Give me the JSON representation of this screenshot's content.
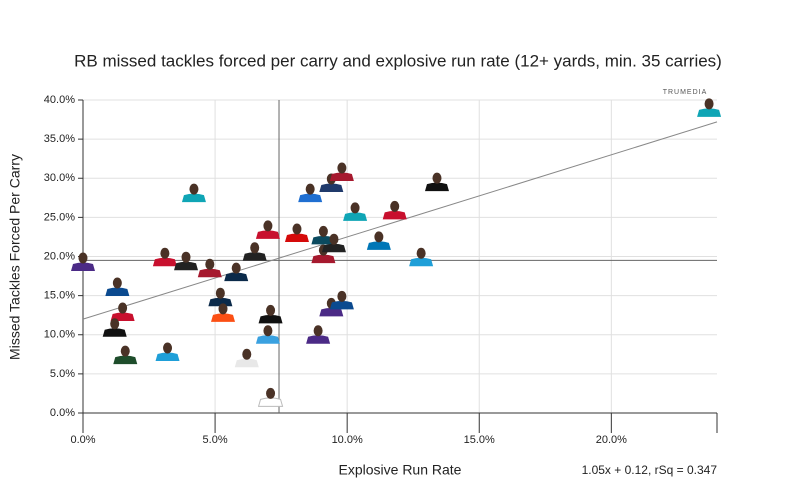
{
  "chart_data": {
    "type": "scatter",
    "title": "RB missed tackles forced per carry and explosive run rate (12+ yards, min. 35 carries)",
    "x_label": "Explosive Run Rate",
    "y_label": "Missed Tackles Forced Per Carry",
    "annotation": "1.05x + 0.12, rSq = 0.347",
    "logo": "TRUMEDIA",
    "xlim": [
      0,
      24
    ],
    "ylim": [
      0,
      40
    ],
    "xticks": [
      {
        "value": 0,
        "label": "0.0%"
      },
      {
        "value": 5,
        "label": "5.0%"
      },
      {
        "value": 10,
        "label": "10.0%"
      },
      {
        "value": 15,
        "label": "15.0%"
      },
      {
        "value": 20,
        "label": "20.0%"
      }
    ],
    "yticks": [
      {
        "value": 0,
        "label": "0.0%"
      },
      {
        "value": 5,
        "label": "5.0%"
      },
      {
        "value": 10,
        "label": "10.0%"
      },
      {
        "value": 15,
        "label": "15.0%"
      },
      {
        "value": 20,
        "label": "20.0%"
      },
      {
        "value": 25,
        "label": "25.0%"
      },
      {
        "value": 30,
        "label": "30.0%"
      },
      {
        "value": 35,
        "label": "35.0%"
      },
      {
        "value": 40,
        "label": "40.0%"
      }
    ],
    "grid": true,
    "x_mean": 7.42,
    "y_mean": 19.5,
    "trendline": {
      "slope": 1.05,
      "intercept": 12
    },
    "x": [
      23.7,
      0.0,
      1.3,
      1.5,
      1.2,
      1.6,
      3.2,
      4.2,
      3.1,
      3.9,
      4.8,
      5.2,
      5.3,
      5.8,
      6.2,
      6.5,
      7.0,
      7.1,
      7.0,
      7.1,
      8.1,
      8.6,
      9.1,
      9.1,
      9.5,
      9.4,
      9.8,
      10.3,
      8.9,
      9.4,
      9.8,
      11.2,
      11.8,
      12.8,
      13.4
    ],
    "y": [
      39.0,
      19.3,
      16.1,
      12.9,
      10.9,
      7.4,
      7.8,
      28.1,
      19.9,
      19.4,
      18.5,
      14.8,
      12.8,
      18.0,
      7.0,
      20.6,
      23.4,
      12.6,
      10.0,
      2.0,
      23.0,
      28.1,
      22.7,
      20.3,
      21.7,
      29.4,
      30.8,
      25.7,
      10.0,
      13.5,
      14.4,
      22.0,
      25.9,
      19.9,
      29.5
    ],
    "colors": [
      "#0fa5b5",
      "#4b2a86",
      "#0b4a8f",
      "#c8102e",
      "#111111",
      "#1e4d2b",
      "#1f9fd8",
      "#0fa5b5",
      "#c8102e",
      "#222222",
      "#a6192e",
      "#0b2a4a",
      "#fb4f14",
      "#0b2a4a",
      "#e8e8e8",
      "#222222",
      "#c8102e",
      "#111111",
      "#3aa1e0",
      "#ffffff",
      "#d50a0a",
      "#1f6fd1",
      "#0b4a5f",
      "#a6192e",
      "#222222",
      "#203a6b",
      "#a6192e",
      "#0fa5b5",
      "#4b2a86",
      "#4b2a86",
      "#0b4a8f",
      "#0076b6",
      "#c8102e",
      "#1f9fd8",
      "#111111"
    ]
  }
}
